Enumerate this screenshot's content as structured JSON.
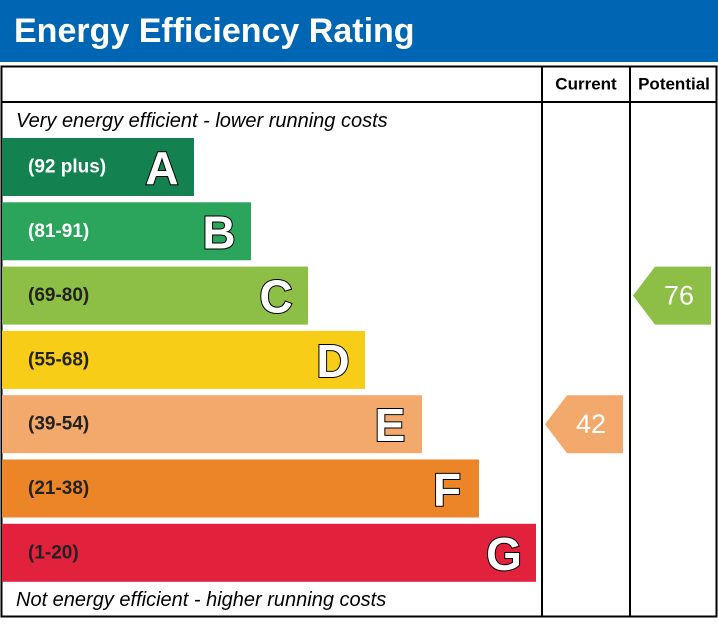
{
  "header": {
    "title": "Energy Efficiency Rating"
  },
  "columns": {
    "current": "Current",
    "potential": "Potential"
  },
  "top_note": "Very energy efficient - lower running costs",
  "bottom_note": "Not energy efficient - higher running costs",
  "bands": [
    {
      "range": "(92 plus)",
      "letter": "A",
      "color": "#138150",
      "text_color": "#ffffff"
    },
    {
      "range": "(81-91)",
      "letter": "B",
      "color": "#2aa55b",
      "text_color": "#ffffff"
    },
    {
      "range": "(69-80)",
      "letter": "C",
      "color": "#8dbe45",
      "text_color": "#222222"
    },
    {
      "range": "(55-68)",
      "letter": "D",
      "color": "#f7cd18",
      "text_color": "#222222"
    },
    {
      "range": "(39-54)",
      "letter": "E",
      "color": "#f2a96b",
      "text_color": "#222222"
    },
    {
      "range": "(21-38)",
      "letter": "F",
      "color": "#ec8428",
      "text_color": "#222222"
    },
    {
      "range": "(1-20)",
      "letter": "G",
      "color": "#e2213d",
      "text_color": "#222222"
    }
  ],
  "current": "42",
  "potential": "76"
}
